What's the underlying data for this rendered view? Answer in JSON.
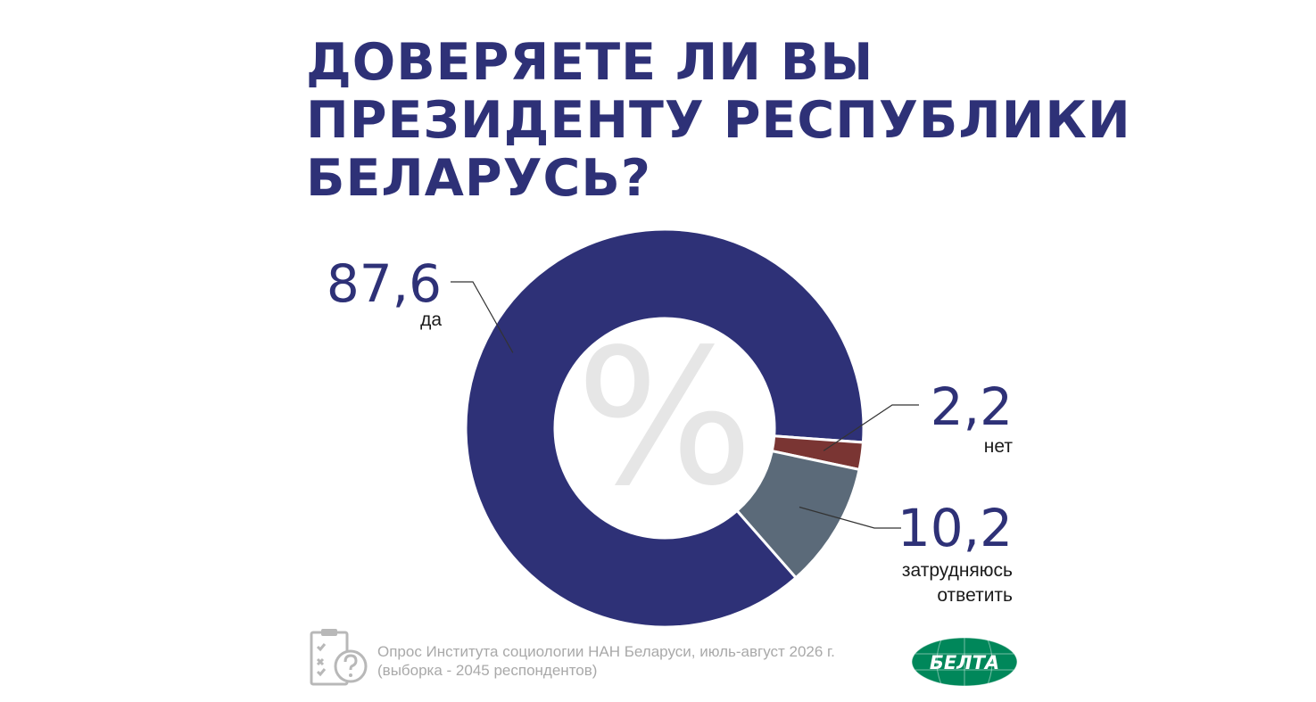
{
  "title": {
    "lines": [
      "Доверяете ли вы",
      "Президенту Республики",
      "Беларусь?"
    ]
  },
  "center_symbol": "%",
  "chart_data": {
    "type": "pie",
    "title": "Доверяете ли вы Президенту Республики Беларусь?",
    "unit": "%",
    "categories": [
      "да",
      "нет",
      "затрудняюсь ответить"
    ],
    "values": [
      87.6,
      2.2,
      10.2
    ],
    "value_labels": [
      "87,6",
      "2,2",
      "10,2"
    ],
    "category_labels": [
      [
        "да"
      ],
      [
        "нет"
      ],
      [
        "затрудняюсь",
        "ответить"
      ]
    ],
    "colors": [
      "#2e3177",
      "#7a3533",
      "#5b6a79"
    ],
    "center_symbol_color": "#e6e6e6"
  },
  "source": {
    "line1": "Опрос Института социологии НАН Беларуси, июль-август 2026 г.",
    "line2": "(выборка - 2045 респондентов)"
  },
  "icons": {
    "survey": "clipboard-question-icon",
    "logo": "belta-logo"
  },
  "logo": {
    "text": "БЕЛТА",
    "color": "#00875a"
  }
}
